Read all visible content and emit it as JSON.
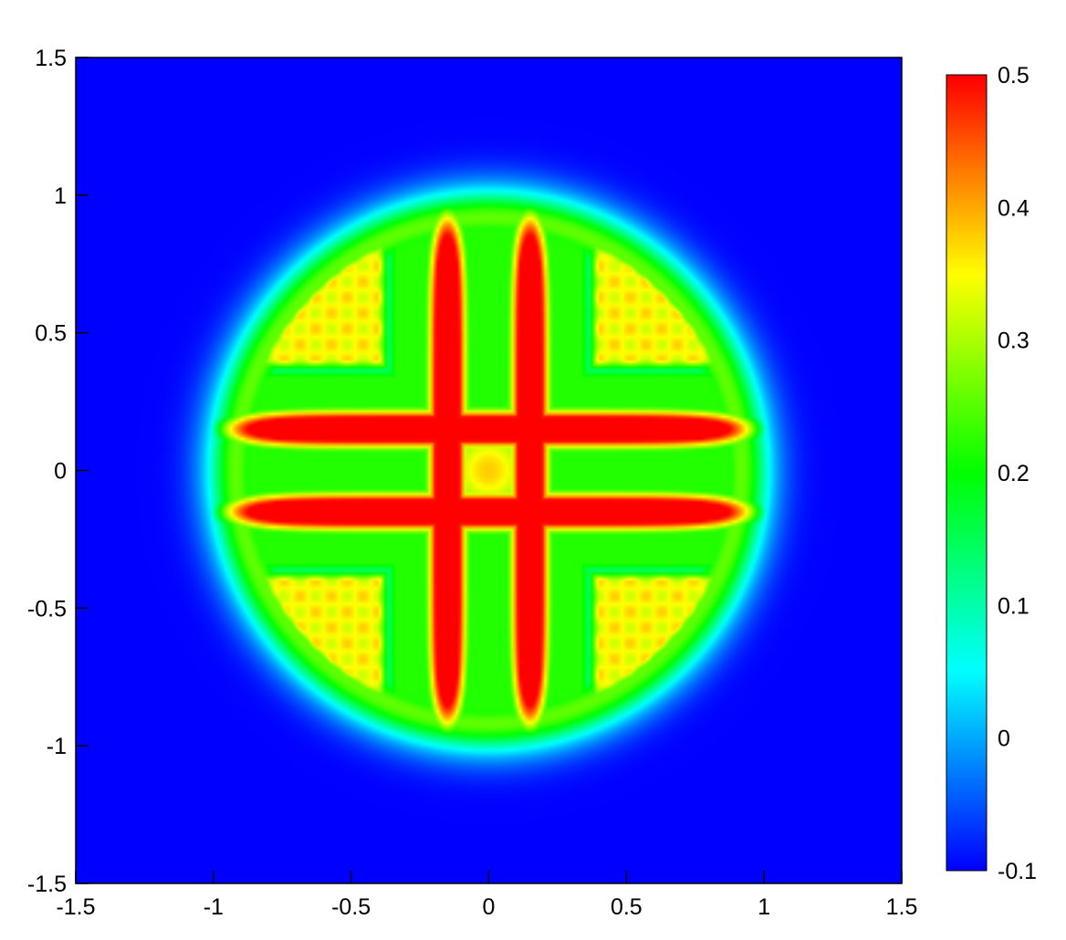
{
  "chart_data": {
    "type": "heatmap",
    "title": "",
    "xlabel": "",
    "ylabel": "",
    "xlim": [
      -1.5,
      1.5
    ],
    "ylim": [
      -1.5,
      1.5
    ],
    "x_ticks": [
      "-1.5",
      "-1",
      "-0.5",
      "0",
      "0.5",
      "1",
      "1.5"
    ],
    "y_ticks": [
      "-1.5",
      "-1",
      "-0.5",
      "0",
      "0.5",
      "1",
      "1.5"
    ],
    "colorbar": {
      "range": [
        -0.1,
        0.5
      ],
      "ticks": [
        "-0.1",
        "0",
        "0.1",
        "0.2",
        "0.3",
        "0.4",
        "0.5"
      ],
      "placement": "right",
      "colormap": [
        "#0000ff",
        "#00ffff",
        "#00ff00",
        "#ffff00",
        "#ff0000"
      ]
    },
    "background_value": -0.1,
    "grid": false,
    "field": {
      "description_of_structure": "cross-shaped pattern with two vertical and two horizontal red lobes and four checkered orange corner regions inside a roughly circular domain",
      "vertical_lobes": [
        {
          "x": -0.15,
          "y_range": [
            -1.0,
            1.0
          ],
          "value": 0.5
        },
        {
          "x": 0.15,
          "y_range": [
            -1.0,
            1.0
          ],
          "value": 0.5
        }
      ],
      "horizontal_lobes": [
        {
          "y": 0.15,
          "x_range": [
            -1.05,
            1.0
          ],
          "value": 0.5
        },
        {
          "y": -0.15,
          "x_range": [
            -1.05,
            1.0
          ],
          "value": 0.5
        }
      ],
      "corner_regions": [
        {
          "quadrant": "top-left",
          "value": 0.35
        },
        {
          "quadrant": "top-right",
          "value": 0.35
        },
        {
          "quadrant": "bottom-left",
          "value": 0.35
        },
        {
          "quadrant": "bottom-right",
          "value": 0.35
        }
      ],
      "outer_radius": 1.08
    }
  }
}
